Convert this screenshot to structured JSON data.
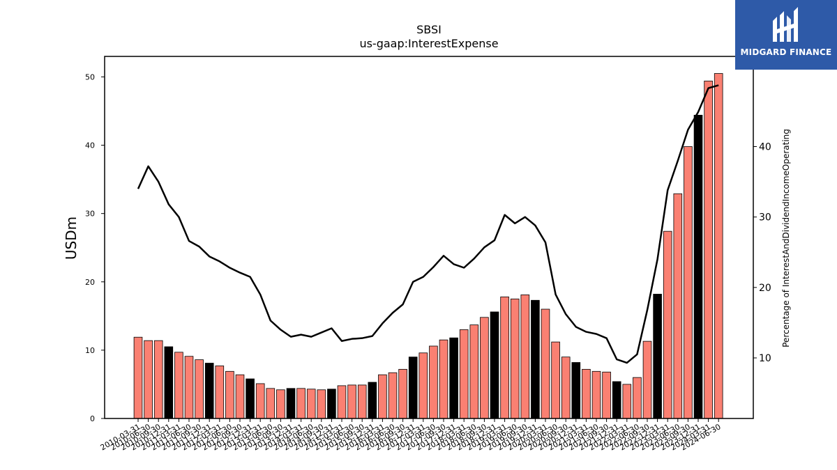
{
  "logo": {
    "text": "MIDGARD FINANCE"
  },
  "chart_data": {
    "type": "bar",
    "title": "SBSI",
    "subtitle": "us-gaap:InterestExpense",
    "ylabel": "USDm",
    "y2label": "Percentage of InterestAndDividendIncomeOperating",
    "ylim": [
      0,
      53
    ],
    "y2lim": [
      1.4,
      52.8
    ],
    "yticks": [
      0,
      10,
      20,
      30,
      40,
      50
    ],
    "y2ticks": [
      10,
      20,
      30,
      40
    ],
    "grid": false,
    "colors": {
      "bar": "#fa8072",
      "bar_q4": "#000000",
      "line": "#000000"
    },
    "categories": [
      "2010-03-31",
      "2010-06-30",
      "2010-09-30",
      "2010-12-31",
      "2011-03-31",
      "2011-06-30",
      "2011-09-30",
      "2011-12-31",
      "2012-03-31",
      "2012-06-30",
      "2012-09-30",
      "2012-12-31",
      "2013-03-31",
      "2013-06-30",
      "2013-09-30",
      "2013-12-31",
      "2014-03-31",
      "2014-06-30",
      "2014-09-30",
      "2014-12-31",
      "2015-03-31",
      "2015-06-30",
      "2015-09-30",
      "2015-12-31",
      "2016-03-31",
      "2016-06-30",
      "2016-09-30",
      "2016-12-31",
      "2017-03-31",
      "2017-06-30",
      "2017-09-30",
      "2017-12-31",
      "2018-03-31",
      "2018-06-30",
      "2018-09-30",
      "2018-12-31",
      "2019-03-31",
      "2019-06-30",
      "2019-09-30",
      "2019-12-31",
      "2020-03-31",
      "2020-06-30",
      "2020-09-30",
      "2020-12-31",
      "2021-03-31",
      "2021-06-30",
      "2021-09-30",
      "2021-12-31",
      "2022-03-31",
      "2022-06-30",
      "2022-09-30",
      "2022-12-31",
      "2023-03-31",
      "2023-06-30",
      "2023-09-30",
      "2023-12-31",
      "2024-03-31",
      "2024-06-30"
    ],
    "series": [
      {
        "type": "bar",
        "values": [
          11.9,
          11.4,
          11.4,
          10.5,
          9.7,
          9.1,
          8.6,
          8.1,
          7.7,
          6.9,
          6.4,
          5.8,
          5.1,
          4.4,
          4.2,
          4.4,
          4.4,
          4.3,
          4.2,
          4.3,
          4.8,
          4.9,
          4.9,
          5.3,
          6.4,
          6.7,
          7.2,
          9.0,
          9.6,
          10.6,
          11.5,
          11.8,
          13.0,
          13.7,
          14.8,
          15.6,
          17.8,
          17.5,
          18.1,
          17.3,
          16.0,
          11.2,
          9.0,
          8.2,
          7.2,
          6.9,
          6.8,
          5.4,
          5.0,
          6.0,
          11.3,
          18.2,
          27.4,
          32.9,
          39.8,
          44.4,
          49.4,
          50.5
        ]
      },
      {
        "type": "line",
        "axis": "y2",
        "values": [
          34.0,
          37.2,
          35.0,
          31.8,
          30.0,
          26.6,
          25.8,
          24.4,
          23.7,
          22.8,
          22.1,
          21.5,
          19.0,
          15.3,
          14.0,
          13.0,
          13.3,
          13.0,
          13.6,
          14.2,
          12.4,
          12.7,
          12.8,
          13.1,
          14.9,
          16.4,
          17.6,
          20.8,
          21.5,
          22.9,
          24.5,
          23.3,
          22.8,
          24.1,
          25.7,
          26.7,
          30.3,
          29.1,
          30.0,
          28.8,
          26.4,
          19.0,
          16.2,
          14.4,
          13.7,
          13.4,
          12.8,
          9.8,
          9.3,
          10.5,
          16.8,
          24.0,
          33.8,
          38.0,
          42.4,
          44.9,
          48.3,
          48.7
        ]
      }
    ]
  }
}
